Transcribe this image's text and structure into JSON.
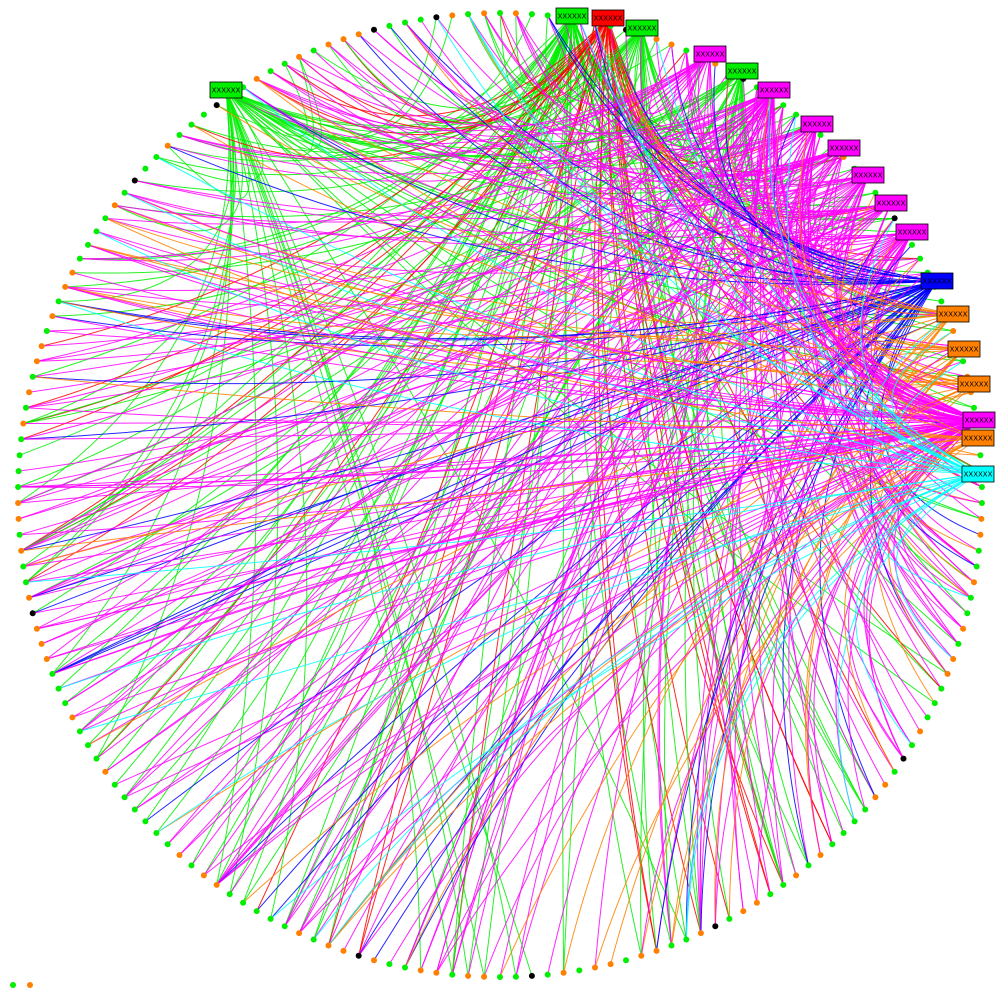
{
  "chart_data": {
    "type": "diagram",
    "layout": "circular",
    "leaf_node_count": 190,
    "leaf_colors": [
      "#00ee00",
      "#ff8000",
      "#000000"
    ],
    "hubs": [
      {
        "label": "XXXXXX",
        "color": "#00ee00",
        "edges": 45
      },
      {
        "label": "XXXXXX",
        "color": "#00ee00",
        "edges": 60
      },
      {
        "label": "XXXXXX",
        "color": "#ff0000",
        "edges": 45
      },
      {
        "label": "XXXXXX",
        "color": "#00ee00",
        "edges": 35
      },
      {
        "label": "XXXXXX",
        "color": "#ff00ff",
        "edges": 25
      },
      {
        "label": "XXXXXX",
        "color": "#00ee00",
        "edges": 30
      },
      {
        "label": "XXXXXX",
        "color": "#ff00ff",
        "edges": 55
      },
      {
        "label": "XXXXXX",
        "color": "#ff00ff",
        "edges": 30
      },
      {
        "label": "XXXXXX",
        "color": "#ff00ff",
        "edges": 25
      },
      {
        "label": "XXXXXX",
        "color": "#ff00ff",
        "edges": 25
      },
      {
        "label": "XXXXXX",
        "color": "#ff00ff",
        "edges": 25
      },
      {
        "label": "XXXXXX",
        "color": "#ff00ff",
        "edges": 30
      },
      {
        "label": "XXXXXX",
        "color": "#0000ff",
        "edges": 45
      },
      {
        "label": "XXXXXX",
        "color": "#ff8000",
        "edges": 15
      },
      {
        "label": "XXXXXX",
        "color": "#ff8000",
        "edges": 15
      },
      {
        "label": "XXXXXX",
        "color": "#ff8000",
        "edges": 15
      },
      {
        "label": "XXXXXX",
        "color": "#ff00ff",
        "edges": 90
      },
      {
        "label": "XXXXXX",
        "color": "#ff8000",
        "edges": 15
      },
      {
        "label": "XXXXXX",
        "color": "#00ffff",
        "edges": 30
      }
    ],
    "stray_nodes": [
      {
        "color": "#00ee00"
      },
      {
        "color": "#ff8000"
      }
    ]
  }
}
